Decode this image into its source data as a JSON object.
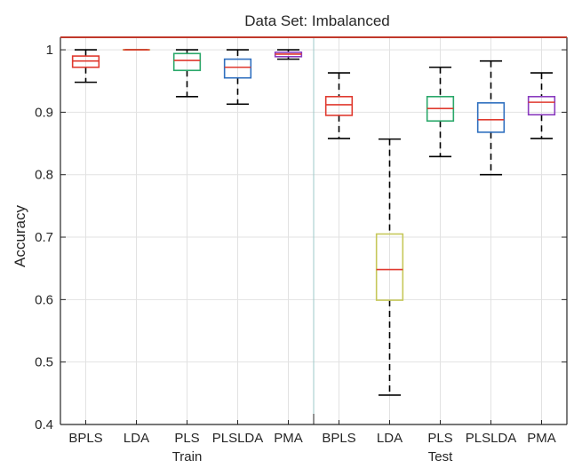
{
  "chart_data": {
    "type": "boxplot",
    "title": "Data Set: Imbalanced",
    "ylabel": "Accuracy",
    "xlabel": "",
    "ylim": [
      0.4,
      1.02
    ],
    "yticks": [
      "0.4",
      "0.5",
      "0.6",
      "0.7",
      "0.8",
      "0.9",
      "1"
    ],
    "grid": true,
    "groups": [
      {
        "label": "Train",
        "boxes": [
          {
            "label": "BPLS",
            "color": "#e03a2f",
            "whisker_low": 0.948,
            "q1": 0.972,
            "median": 0.982,
            "q3": 0.99,
            "whisker_high": 1.0
          },
          {
            "label": "LDA",
            "color": "#c6c85a",
            "whisker_low": 1.0,
            "q1": 1.0,
            "median": 1.0,
            "q3": 1.0,
            "whisker_high": 1.0
          },
          {
            "label": "PLS",
            "color": "#2aa86a",
            "whisker_low": 0.925,
            "q1": 0.967,
            "median": 0.983,
            "q3": 0.994,
            "whisker_high": 1.0
          },
          {
            "label": "PLSLDA",
            "color": "#2f6fbf",
            "whisker_low": 0.913,
            "q1": 0.955,
            "median": 0.972,
            "q3": 0.985,
            "whisker_high": 1.0
          },
          {
            "label": "PMA",
            "color": "#8a3bbf",
            "whisker_low": 0.985,
            "q1": 0.989,
            "median": 0.993,
            "q3": 0.996,
            "whisker_high": 1.0
          }
        ]
      },
      {
        "label": "Test",
        "boxes": [
          {
            "label": "BPLS",
            "color": "#e03a2f",
            "whisker_low": 0.858,
            "q1": 0.895,
            "median": 0.912,
            "q3": 0.925,
            "whisker_high": 0.963
          },
          {
            "label": "LDA",
            "color": "#c6c85a",
            "whisker_low": 0.447,
            "q1": 0.599,
            "median": 0.648,
            "q3": 0.705,
            "whisker_high": 0.857
          },
          {
            "label": "PLS",
            "color": "#2aa86a",
            "whisker_low": 0.829,
            "q1": 0.886,
            "median": 0.906,
            "q3": 0.925,
            "whisker_high": 0.972
          },
          {
            "label": "PLSLDA",
            "color": "#2f6fbf",
            "whisker_low": 0.8,
            "q1": 0.868,
            "median": 0.888,
            "q3": 0.915,
            "whisker_high": 0.982
          },
          {
            "label": "PMA",
            "color": "#8a3bbf",
            "whisker_low": 0.858,
            "q1": 0.896,
            "median": 0.916,
            "q3": 0.925,
            "whisker_high": 0.963
          }
        ]
      }
    ],
    "colors": {
      "frame": "#c0392b",
      "median": "#e03a2f",
      "whisker": "#000000",
      "grid": "#e2e2e2",
      "group_divider": "#9ec9c9"
    }
  }
}
